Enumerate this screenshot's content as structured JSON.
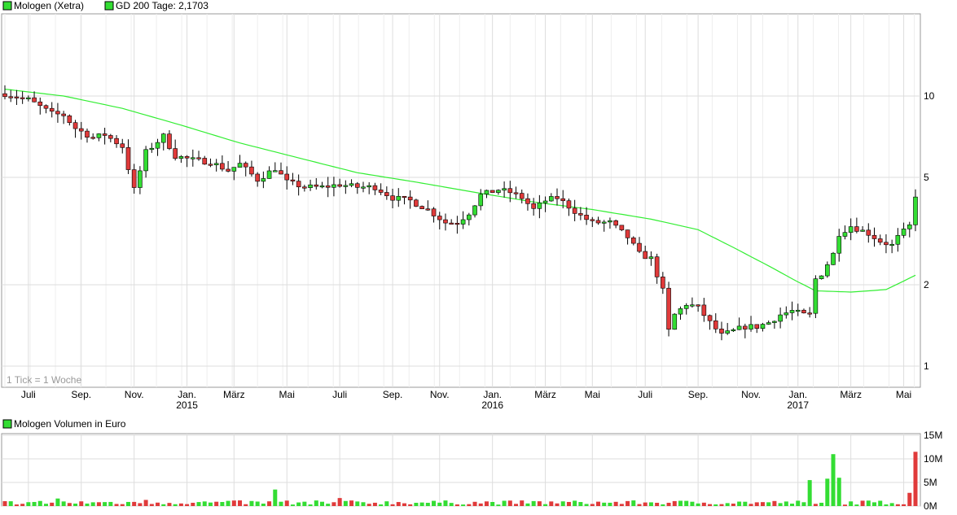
{
  "legend": {
    "price_series": "Mologen (Xetra)",
    "ma_series": "GD 200 Tage: 2,1703",
    "volume_series": "Mologen Volumen in Euro"
  },
  "note": "1 Tick = 1 Woche",
  "colors": {
    "up": "#33dd33",
    "down": "#e03a3a",
    "ma_line": "#33ee33",
    "grid": "#dddddd",
    "frame": "#999999",
    "legend_box": "#33dd33"
  },
  "chart_data": [
    {
      "type": "candlestick",
      "title": "Mologen (Xetra)",
      "y_scale": "log",
      "ylim": [
        0.9,
        20
      ],
      "y_ticks": [
        "10",
        "5",
        "2",
        "1"
      ],
      "y_tick_values": [
        10,
        5,
        2,
        1
      ],
      "grid": true,
      "x_ticks": [
        {
          "label": "Juli",
          "week": 4
        },
        {
          "label": "Sep.",
          "week": 13
        },
        {
          "label": "Nov.",
          "week": 22
        },
        {
          "label": "Jan.",
          "week": 31,
          "year": "2015"
        },
        {
          "label": "März",
          "week": 39
        },
        {
          "label": "Mai",
          "week": 48
        },
        {
          "label": "Juli",
          "week": 57
        },
        {
          "label": "Sep.",
          "week": 66
        },
        {
          "label": "Nov.",
          "week": 74
        },
        {
          "label": "Jan.",
          "week": 83,
          "year": "2016"
        },
        {
          "label": "März",
          "week": 92
        },
        {
          "label": "Mai",
          "week": 100
        },
        {
          "label": "Juli",
          "week": 109
        },
        {
          "label": "Sep.",
          "week": 118
        },
        {
          "label": "Nov.",
          "week": 127
        },
        {
          "label": "Jan.",
          "week": 135,
          "year": "2017"
        },
        {
          "label": "März",
          "week": 144
        },
        {
          "label": "Mai",
          "week": 153
        }
      ],
      "weeks": 156,
      "price_keypoints": [
        [
          0,
          10.2
        ],
        [
          4,
          9.7
        ],
        [
          8,
          8.6
        ],
        [
          10,
          8.5
        ],
        [
          12,
          7.6
        ],
        [
          15,
          7.0
        ],
        [
          17,
          7.2
        ],
        [
          20,
          6.5
        ],
        [
          22,
          4.5
        ],
        [
          24,
          6.2
        ],
        [
          27,
          7.1
        ],
        [
          29,
          6.0
        ],
        [
          32,
          5.8
        ],
        [
          35,
          5.7
        ],
        [
          38,
          5.3
        ],
        [
          40,
          5.6
        ],
        [
          43,
          4.9
        ],
        [
          46,
          5.4
        ],
        [
          48,
          4.8
        ],
        [
          51,
          4.6
        ],
        [
          54,
          4.6
        ],
        [
          57,
          4.7
        ],
        [
          60,
          4.6
        ],
        [
          63,
          4.6
        ],
        [
          66,
          4.2
        ],
        [
          69,
          4.1
        ],
        [
          72,
          3.8
        ],
        [
          75,
          3.4
        ],
        [
          77,
          3.4
        ],
        [
          79,
          3.7
        ],
        [
          81,
          4.3
        ],
        [
          84,
          4.5
        ],
        [
          86,
          4.4
        ],
        [
          88,
          4.2
        ],
        [
          90,
          3.8
        ],
        [
          92,
          4.1
        ],
        [
          94,
          4.2
        ],
        [
          96,
          3.9
        ],
        [
          98,
          3.6
        ],
        [
          100,
          3.4
        ],
        [
          103,
          3.4
        ],
        [
          106,
          3.0
        ],
        [
          108,
          2.6
        ],
        [
          110,
          2.5
        ],
        [
          112,
          1.9
        ],
        [
          113,
          1.35
        ],
        [
          114,
          1.55
        ],
        [
          116,
          1.7
        ],
        [
          118,
          1.65
        ],
        [
          120,
          1.45
        ],
        [
          122,
          1.3
        ],
        [
          124,
          1.35
        ],
        [
          126,
          1.4
        ],
        [
          128,
          1.4
        ],
        [
          130,
          1.45
        ],
        [
          132,
          1.55
        ],
        [
          134,
          1.6
        ],
        [
          136,
          1.55
        ],
        [
          137,
          1.55
        ],
        [
          138,
          2.1
        ],
        [
          139,
          2.2
        ],
        [
          141,
          2.6
        ],
        [
          142,
          3.1
        ],
        [
          144,
          3.3
        ],
        [
          147,
          3.1
        ],
        [
          149,
          2.9
        ],
        [
          151,
          2.8
        ],
        [
          152,
          3.0
        ],
        [
          154,
          3.3
        ],
        [
          155,
          4.3
        ]
      ],
      "ma200_keypoints": [
        [
          0,
          10.6
        ],
        [
          10,
          10.0
        ],
        [
          20,
          9.0
        ],
        [
          30,
          7.8
        ],
        [
          40,
          6.7
        ],
        [
          50,
          5.9
        ],
        [
          60,
          5.2
        ],
        [
          70,
          4.8
        ],
        [
          80,
          4.4
        ],
        [
          90,
          4.05
        ],
        [
          100,
          3.8
        ],
        [
          110,
          3.5
        ],
        [
          118,
          3.2
        ],
        [
          124,
          2.75
        ],
        [
          130,
          2.35
        ],
        [
          135,
          2.05
        ],
        [
          138,
          1.9
        ],
        [
          144,
          1.88
        ],
        [
          150,
          1.92
        ],
        [
          155,
          2.17
        ]
      ]
    },
    {
      "type": "bar",
      "title": "Mologen Volumen in Euro",
      "ylim": [
        0,
        15000000
      ],
      "y_ticks": [
        "15M",
        "10M",
        "5M",
        "0M"
      ],
      "y_tick_values": [
        15000000,
        10000000,
        5000000,
        0
      ],
      "volume_spikes": [
        [
          9,
          1.6
        ],
        [
          24,
          1.3
        ],
        [
          46,
          3.5
        ],
        [
          57,
          1.7
        ],
        [
          137,
          5.5
        ],
        [
          140,
          5.8
        ],
        [
          141,
          11.0
        ],
        [
          142,
          6.0
        ],
        [
          155,
          11.5
        ],
        [
          154,
          2.8
        ]
      ]
    }
  ]
}
